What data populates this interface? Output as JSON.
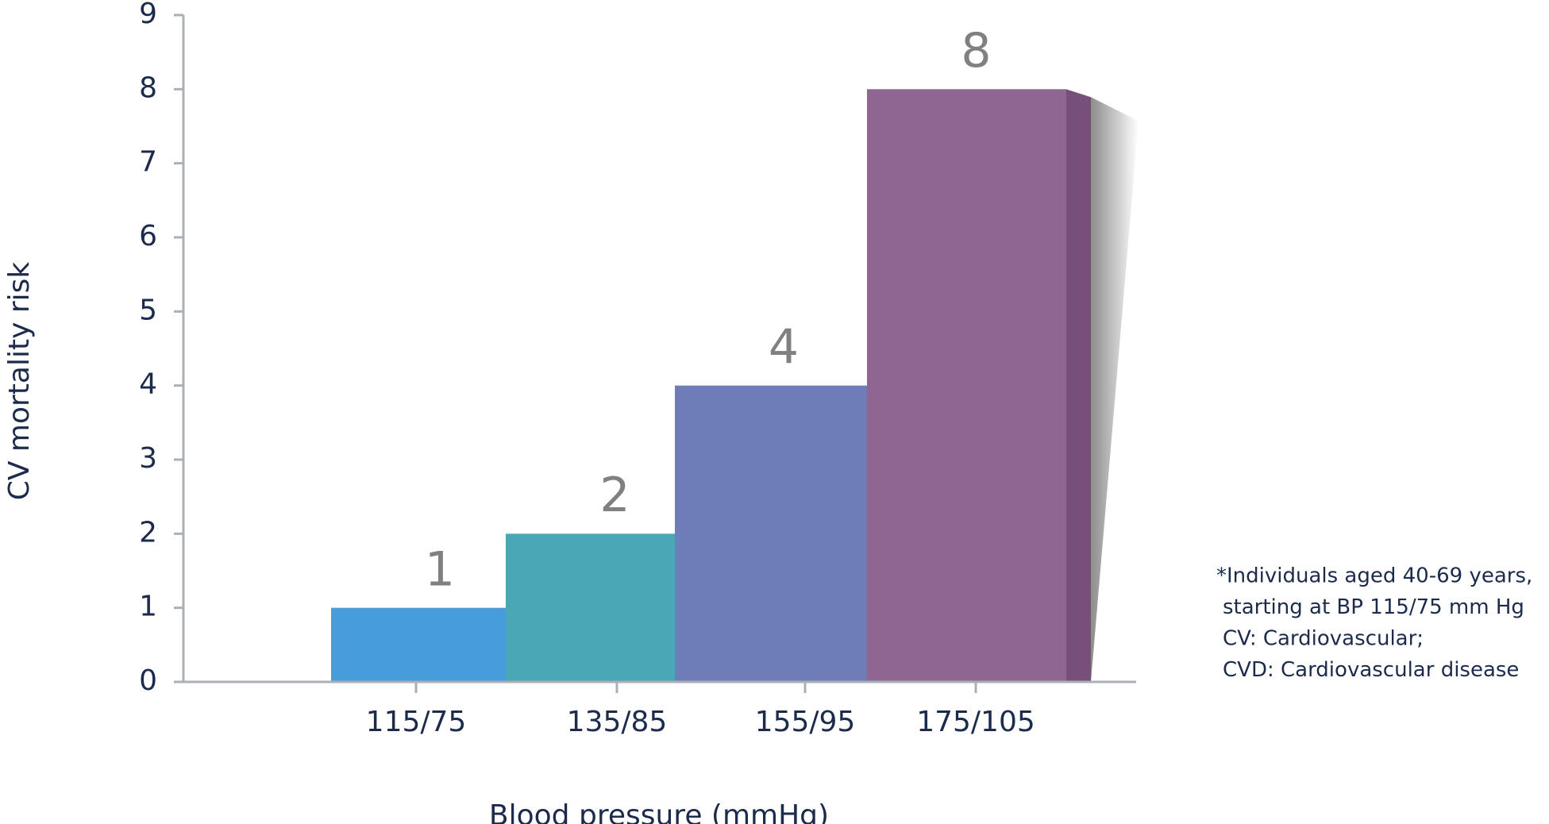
{
  "chart_data": {
    "type": "bar",
    "y_label": "CV mortality risk",
    "x_label": "Blood pressure (mmHg)",
    "categories": [
      "115/75",
      "135/85",
      "155/95",
      "175/105"
    ],
    "values": [
      1,
      2,
      4,
      8
    ],
    "colors": [
      "#479cdb",
      "#4aa7b5",
      "#6e7db6",
      "#8e6691"
    ],
    "side_colors": [
      "#2a78a8",
      "#3a8a8e",
      "#5c6a9a",
      "#765079"
    ],
    "ylim": [
      0,
      9
    ],
    "yticks": [
      0,
      1,
      2,
      3,
      4,
      5,
      6,
      7,
      8,
      9
    ],
    "notes": [
      "*Individuals aged 40-69 years,",
      "starting at BP 115/75 mm Hg",
      "CV: Cardiovascular;",
      "CVD: Cardiovascular disease"
    ]
  }
}
